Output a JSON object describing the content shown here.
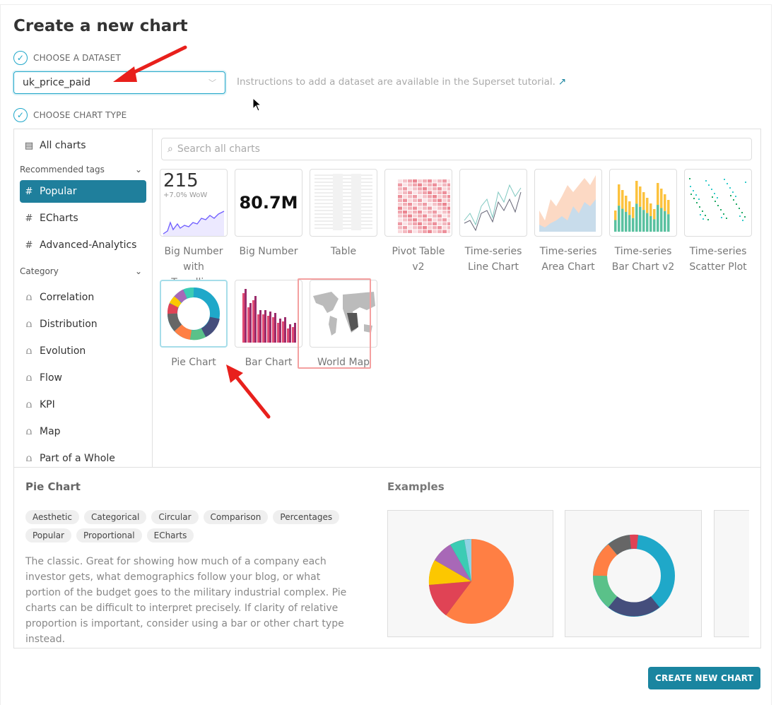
{
  "title": "Create a new chart",
  "step1": {
    "label": "CHOOSE A DATASET",
    "value": "uk_price_paid",
    "hint": "Instructions to add a dataset are available in the Superset tutorial."
  },
  "step2": {
    "label": "CHOOSE CHART TYPE"
  },
  "sidebar": {
    "all": "All charts",
    "recommended_label": "Recommended tags",
    "tags": [
      {
        "label": "Popular",
        "selected": true
      },
      {
        "label": "ECharts"
      },
      {
        "label": "Advanced-Analytics"
      }
    ],
    "category_label": "Category",
    "categories": [
      "Correlation",
      "Distribution",
      "Evolution",
      "Flow",
      "KPI",
      "Map",
      "Part of a Whole"
    ]
  },
  "search": {
    "placeholder": "Search all charts"
  },
  "charts": [
    {
      "label": "Big Number with Trendline",
      "thumb_value": "215",
      "thumb_sub": "+7.0% WoW"
    },
    {
      "label": "Big Number",
      "thumb_value": "80.7M"
    },
    {
      "label": "Table"
    },
    {
      "label": "Pivot Table v2"
    },
    {
      "label": "Time-series Line Chart"
    },
    {
      "label": "Time-series Area Chart"
    },
    {
      "label": "Time-series Bar Chart v2"
    },
    {
      "label": "Time-series Scatter Plot"
    },
    {
      "label": "Pie Chart",
      "selected": true
    },
    {
      "label": "Bar Chart"
    },
    {
      "label": "World Map"
    }
  ],
  "details": {
    "name": "Pie Chart",
    "tags": [
      "Aesthetic",
      "Categorical",
      "Circular",
      "Comparison",
      "Percentages",
      "Popular",
      "Proportional",
      "ECharts"
    ],
    "description": "The classic. Great for showing how much of a company each investor gets, what demographics follow your blog, or what portion of the budget goes to the military industrial complex. Pie charts can be difficult to interpret precisely. If clarity of relative proportion is important, consider using a bar or other chart type instead.",
    "examples_label": "Examples"
  },
  "create_button": "CREATE NEW CHART",
  "colors": {
    "primary": "#1a85a0",
    "accent": "#20a7c9",
    "annotation": "#e8201c"
  }
}
